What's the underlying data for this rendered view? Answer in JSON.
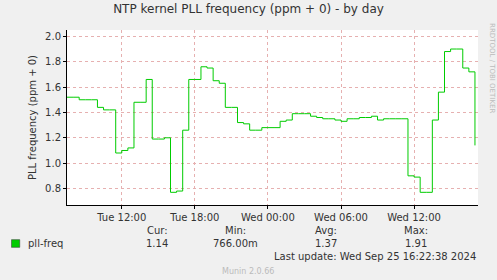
{
  "chart_data": {
    "type": "line",
    "title": "NTP kernel PLL frequency (ppm + 0) - by day",
    "y_label": "PLL frequency (ppm + 0)",
    "categories": [
      null,
      null,
      null,
      null,
      null,
      null,
      null,
      null,
      null,
      "Tue 12:00",
      null,
      null,
      null,
      null,
      null,
      null,
      null,
      null,
      null,
      null,
      null,
      "Tue 18:00",
      null,
      null,
      null,
      null,
      null,
      null,
      null,
      null,
      null,
      null,
      null,
      "Wed 00:00",
      null,
      null,
      null,
      null,
      null,
      null,
      null,
      null,
      null,
      null,
      null,
      "Wed 06:00",
      null,
      null,
      null,
      null,
      null,
      null,
      null,
      null,
      null,
      null,
      null,
      "Wed 12:00",
      null,
      null,
      null,
      null,
      null,
      null,
      null,
      null,
      null,
      null
    ],
    "series": [
      {
        "name": "pll-freq",
        "color": "#00cc00",
        "line_style": "step",
        "values": [
          1.52,
          1.52,
          1.5,
          1.5,
          1.5,
          1.44,
          1.42,
          1.42,
          1.08,
          1.1,
          1.12,
          1.48,
          1.48,
          1.66,
          1.19,
          1.19,
          1.2,
          0.77,
          0.78,
          1.26,
          1.66,
          1.66,
          1.76,
          1.75,
          1.65,
          1.63,
          1.44,
          1.44,
          1.32,
          1.31,
          1.26,
          1.26,
          1.28,
          1.28,
          1.28,
          1.33,
          1.34,
          1.39,
          1.39,
          1.39,
          1.37,
          1.36,
          1.35,
          1.35,
          1.34,
          1.33,
          1.35,
          1.35,
          1.36,
          1.36,
          1.37,
          1.34,
          1.35,
          1.35,
          1.35,
          1.35,
          0.9,
          0.89,
          0.77,
          0.77,
          1.34,
          1.56,
          1.88,
          1.9,
          1.9,
          1.75,
          1.72,
          1.14
        ]
      }
    ],
    "ylim": [
      0.67,
      2.05
    ],
    "yticks": [
      0.8,
      {
        "value": 1,
        "label": "1.0"
      },
      1.2,
      1.4,
      1.6,
      1.8,
      {
        "value": 2,
        "label": "2.0"
      }
    ],
    "grid": true,
    "legend_table": {
      "headers": [
        "Cur:",
        "Min:",
        "Avg:",
        "Max:"
      ],
      "values": [
        {
          "value": 1.14,
          "label": "1.14"
        },
        {
          "value": 0.766,
          "label": "766.00m"
        },
        {
          "value": 1.37,
          "label": "1.37"
        },
        {
          "value": 1.91,
          "label": "1.91"
        }
      ]
    },
    "last_update": "Last update: Wed Sep 25 16:22:38 2024",
    "watermark": "RRDTOOL / TOBI OETIKER",
    "footer": "Munin 2.0.66"
  }
}
